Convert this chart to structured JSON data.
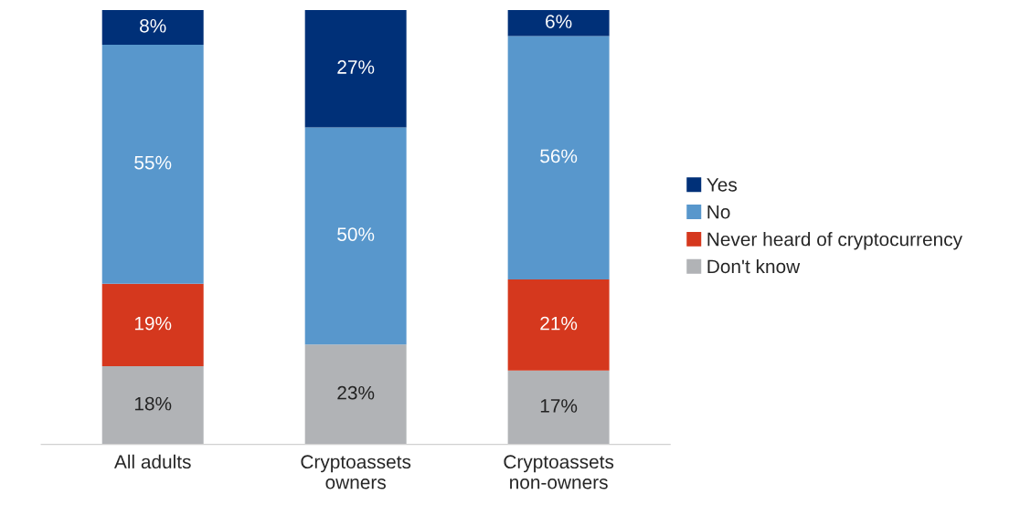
{
  "chart_data": {
    "type": "bar",
    "stacked": true,
    "legend": "right",
    "grid": false,
    "categories": [
      "All adults",
      "Cryptoassets\nowners",
      "Cryptoassets\nnon-owners"
    ],
    "series": [
      {
        "name": "Don't know",
        "color": "#b1b3b6",
        "values": [
          18,
          23,
          17
        ],
        "value_labels": [
          "18%",
          "23%",
          "17%"
        ]
      },
      {
        "name": "Never heard of cryptocurrency",
        "color": "#d5381e",
        "values": [
          19,
          null,
          21
        ],
        "value_labels": [
          "19%",
          null,
          "21%"
        ]
      },
      {
        "name": "No",
        "color": "#5897cc",
        "values": [
          55,
          50,
          56
        ],
        "value_labels": [
          "55%",
          "50%",
          "56%"
        ]
      },
      {
        "name": "Yes",
        "color": "#003078",
        "values": [
          8,
          27,
          6
        ],
        "value_labels": [
          "8%",
          "27%",
          "6%"
        ]
      }
    ]
  }
}
